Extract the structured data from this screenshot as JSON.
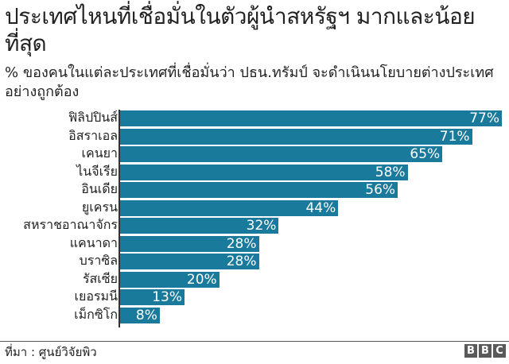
{
  "header": {
    "title": "ประเทศไหนที่เชื่อมั่นในตัวผู้นำสหรัฐฯ มากและน้อยที่สุด",
    "subtitle": "% ของคนในแต่ละประเทศที่เชื่อมั่นว่า ปธน.ทรัมป์ จะดำเนินนโยบายต่างประเทศอย่างถูกต้อง"
  },
  "footer": {
    "source": "ที่มา : ศูนย์วิจัยพิว",
    "logo": [
      "B",
      "B",
      "C"
    ]
  },
  "colors": {
    "bar": "#1a7a9c",
    "text": "#222222",
    "axis": "#333333"
  },
  "chart_data": {
    "type": "bar",
    "orientation": "horizontal",
    "title": "ประเทศไหนที่เชื่อมั่นในตัวผู้นำสหรัฐฯ มากและน้อยที่สุด",
    "subtitle": "% ของคนในแต่ละประเทศที่เชื่อมั่นว่า ปธน.ทรัมป์ จะดำเนินนโยบายต่างประเทศอย่างถูกต้อง",
    "categories": [
      "ฟิลิปปินส์",
      "อิสราเอล",
      "เคนยา",
      "ไนจีเรีย",
      "อินเดีย",
      "ยูเครน",
      "สหราชอาณาจักร",
      "แคนาดา",
      "บราซิล",
      "รัสเซีย",
      "เยอรมนี",
      "เม็กซิโก"
    ],
    "values": [
      77,
      71,
      65,
      58,
      56,
      44,
      32,
      28,
      28,
      20,
      13,
      8
    ],
    "value_labels": [
      "77%",
      "71%",
      "65%",
      "58%",
      "56%",
      "44%",
      "32%",
      "28%",
      "28%",
      "20%",
      "13%",
      "8%"
    ],
    "xlabel": "",
    "ylabel": "",
    "xlim": [
      0,
      77
    ],
    "grid": false,
    "legend": null,
    "source": "ที่มา : ศูนย์วิจัยพิว"
  }
}
